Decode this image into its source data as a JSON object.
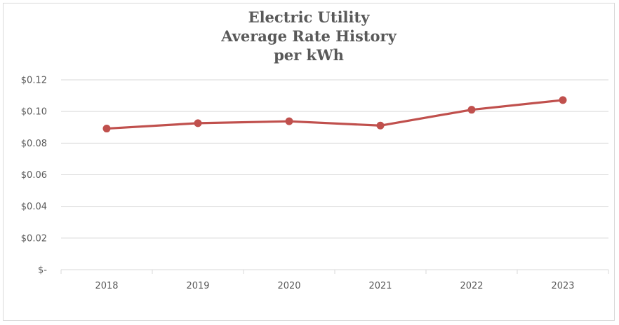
{
  "chart_data": {
    "type": "line",
    "title_lines": [
      "Electric Utility",
      "Average Rate History",
      "per kWh"
    ],
    "categories": [
      "2018",
      "2019",
      "2020",
      "2021",
      "2022",
      "2023"
    ],
    "series": [
      {
        "values": [
          0.0892,
          0.0926,
          0.0938,
          0.0911,
          0.1011,
          0.1072
        ],
        "color": "#c0504d"
      }
    ],
    "ylim": [
      0,
      0.12
    ],
    "y_ticks": [
      0,
      0.02,
      0.04,
      0.06,
      0.08,
      0.1,
      0.12
    ],
    "y_tick_labels": [
      "$-",
      "$0.02",
      "$0.04",
      "$0.06",
      "$0.08",
      "$0.10",
      "$0.12"
    ],
    "xlabel": "",
    "ylabel": "",
    "grid": true,
    "legend": "none",
    "gridline_color": "#d9d9d9",
    "text_color": "#595959"
  }
}
